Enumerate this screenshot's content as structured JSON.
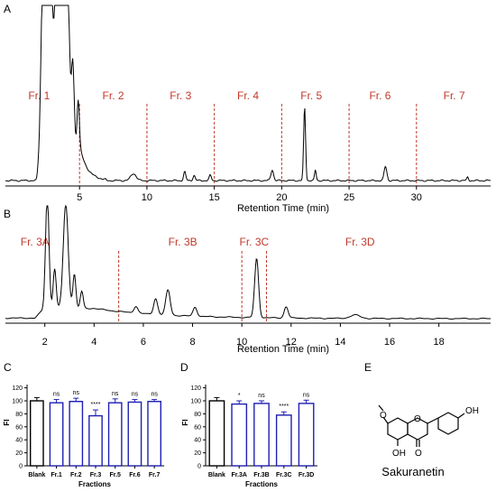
{
  "colors": {
    "fraction_label": "#c0392b",
    "divider": "#c0392b",
    "bar_blank": "#000000",
    "bar_fraction": "#1f1fb4",
    "trace": "#000000"
  },
  "panel_letters": {
    "a": "A",
    "b": "B",
    "c": "C",
    "d": "D",
    "e": "E"
  },
  "structure": {
    "caption": "Sakuranetin",
    "oh_top": "OH",
    "oh_bottom": "OH",
    "ketone": "O",
    "ring_o": "O",
    "methoxy_o": "O"
  },
  "chart_data": [
    {
      "id": "A",
      "type": "line",
      "xlabel": "Retention Time (min)",
      "xlim": [
        -0.5,
        35.5
      ],
      "xticks": [
        5,
        10,
        15,
        20,
        25,
        30
      ],
      "grid": false,
      "dividers": [
        5,
        10,
        15,
        20,
        25,
        30
      ],
      "regions": [
        {
          "label": "Fr. 1",
          "x": 2
        },
        {
          "label": "Fr. 2",
          "x": 7.5
        },
        {
          "label": "Fr. 3",
          "x": 12.5
        },
        {
          "label": "Fr. 4",
          "x": 17.5
        },
        {
          "label": "Fr. 5",
          "x": 22.2
        },
        {
          "label": "Fr. 6",
          "x": 27.3
        },
        {
          "label": "Fr. 7",
          "x": 32.8
        }
      ],
      "peaks": [
        {
          "x": 2.3,
          "h": 1.0,
          "w": 0.15
        },
        {
          "x": 2.6,
          "h": 0.97,
          "w": 0.15
        },
        {
          "x": 2.9,
          "h": 0.72,
          "w": 0.12
        },
        {
          "x": 3.3,
          "h": 1.0,
          "w": 0.18
        },
        {
          "x": 3.7,
          "h": 1.0,
          "w": 0.15
        },
        {
          "x": 4.1,
          "h": 0.97,
          "w": 0.15
        },
        {
          "x": 4.5,
          "h": 0.46,
          "w": 0.1
        },
        {
          "x": 4.9,
          "h": 0.26,
          "w": 0.08
        },
        {
          "x": 9.0,
          "h": 0.04,
          "w": 0.2
        },
        {
          "x": 12.8,
          "h": 0.05,
          "w": 0.08
        },
        {
          "x": 13.5,
          "h": 0.03,
          "w": 0.08
        },
        {
          "x": 14.7,
          "h": 0.03,
          "w": 0.08
        },
        {
          "x": 19.3,
          "h": 0.06,
          "w": 0.1
        },
        {
          "x": 21.7,
          "h": 0.42,
          "w": 0.07
        },
        {
          "x": 22.5,
          "h": 0.06,
          "w": 0.06
        },
        {
          "x": 27.7,
          "h": 0.08,
          "w": 0.1
        },
        {
          "x": 33.8,
          "h": 0.02,
          "w": 0.06
        }
      ]
    },
    {
      "id": "B",
      "type": "line",
      "xlabel": "Retention Time (min)",
      "xlim": [
        0.4,
        20.1
      ],
      "xticks": [
        2,
        4,
        6,
        8,
        10,
        12,
        14,
        16,
        18
      ],
      "grid": false,
      "dividers": [
        5,
        10,
        11
      ],
      "regions": [
        {
          "label": "Fr. 3A",
          "x": 1.6
        },
        {
          "label": "Fr. 3B",
          "x": 7.6
        },
        {
          "label": "Fr. 3C",
          "x": 10.5
        },
        {
          "label": "Fr. 3D",
          "x": 14.8
        }
      ],
      "peaks": [
        {
          "x": 2.1,
          "h": 1.0,
          "w": 0.07
        },
        {
          "x": 2.4,
          "h": 0.35,
          "w": 0.06
        },
        {
          "x": 2.85,
          "h": 0.92,
          "w": 0.1
        },
        {
          "x": 3.2,
          "h": 0.3,
          "w": 0.06
        },
        {
          "x": 3.5,
          "h": 0.15,
          "w": 0.06
        },
        {
          "x": 5.7,
          "h": 0.06,
          "w": 0.08
        },
        {
          "x": 6.5,
          "h": 0.14,
          "w": 0.08
        },
        {
          "x": 7.0,
          "h": 0.22,
          "w": 0.09
        },
        {
          "x": 8.1,
          "h": 0.08,
          "w": 0.08
        },
        {
          "x": 10.6,
          "h": 0.52,
          "w": 0.08
        },
        {
          "x": 11.8,
          "h": 0.1,
          "w": 0.08
        },
        {
          "x": 14.6,
          "h": 0.03,
          "w": 0.2
        }
      ]
    },
    {
      "id": "C",
      "type": "bar",
      "xlabel": "Fractions",
      "ylabel": "FI",
      "ylim": [
        0,
        125
      ],
      "yticks": [
        0,
        20,
        40,
        60,
        80,
        100,
        120
      ],
      "categories": [
        "Blank",
        "Fr.1",
        "Fr.2",
        "Fr.3",
        "Fr.5",
        "Fr.6",
        "Fr.7"
      ],
      "values": [
        100,
        97,
        99,
        77,
        97,
        98,
        99
      ],
      "errors": [
        5,
        5,
        5,
        9,
        6,
        4,
        3
      ],
      "significance": [
        "",
        "ns",
        "ns",
        "****",
        "ns",
        "ns",
        "ns"
      ]
    },
    {
      "id": "D",
      "type": "bar",
      "xlabel": "Fractions",
      "ylabel": "FI",
      "ylim": [
        0,
        125
      ],
      "yticks": [
        0,
        20,
        40,
        60,
        80,
        100,
        120
      ],
      "categories": [
        "Blank",
        "Fr.3A",
        "Fr.3B",
        "Fr.3C",
        "Fr.3D"
      ],
      "values": [
        100,
        95,
        96,
        78,
        96
      ],
      "errors": [
        5,
        5,
        4,
        5,
        5
      ],
      "significance": [
        "",
        "*",
        "ns",
        "****",
        "ns"
      ]
    }
  ]
}
